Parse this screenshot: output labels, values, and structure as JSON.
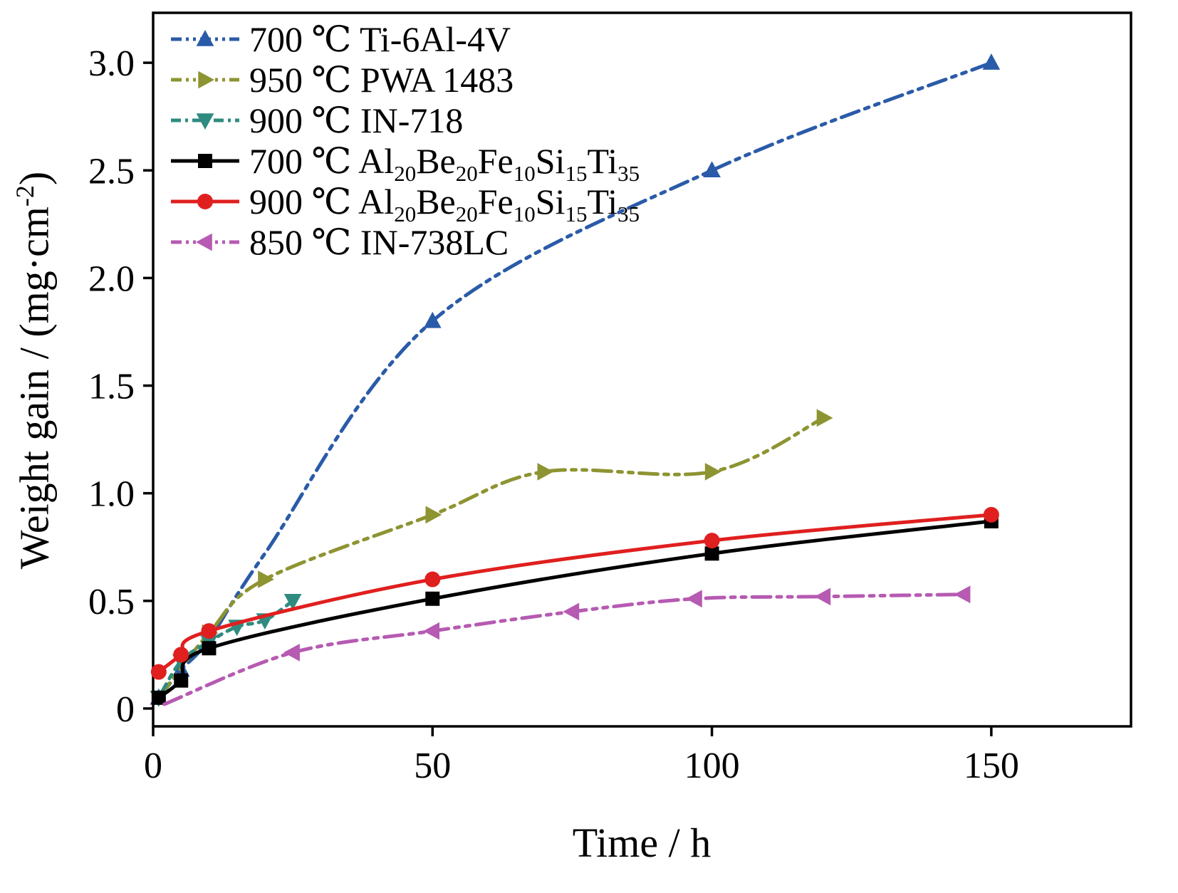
{
  "chart_data": {
    "type": "line",
    "title": "",
    "xlabel": "Time / h",
    "ylabel": "Weight gain / (mg·cm^{-2})",
    "xlim": [
      0,
      175
    ],
    "ylim": [
      -0.083,
      3.232
    ],
    "xticks": [
      0,
      50,
      100,
      150
    ],
    "xtick_labels": [
      "0",
      "50",
      "100",
      "150"
    ],
    "yticks": [
      0,
      0.5,
      1.0,
      1.5,
      2.0,
      2.5,
      3.0
    ],
    "ytick_labels": [
      "0",
      "0.5",
      "1.0",
      "1.5",
      "2.0",
      "2.5",
      "3.0"
    ],
    "grid": false,
    "legend_position": "top-left-inside",
    "series": [
      {
        "name": "700 ℃ Ti-6Al-4V",
        "color": "#2a5ba8",
        "marker": "triangle-up",
        "dash": "dashdotdot",
        "x": [
          1,
          5,
          10,
          20,
          50,
          100,
          150
        ],
        "y": [
          0.05,
          0.18,
          0.32,
          0.72,
          1.8,
          2.5,
          3.0
        ],
        "m": [
          1,
          1,
          1,
          0,
          1,
          1,
          1
        ]
      },
      {
        "name": "950 ℃ PWA 1483",
        "color": "#8d9432",
        "marker": "triangle-right",
        "dash": "dashdotdot",
        "x": [
          1,
          10,
          20,
          50,
          70,
          100,
          120
        ],
        "y": [
          0.05,
          0.35,
          0.6,
          0.9,
          1.1,
          1.1,
          1.35
        ],
        "m": [
          0,
          1,
          1,
          1,
          1,
          1,
          1
        ]
      },
      {
        "name": "900 ℃ IN-718",
        "color": "#2f8b80",
        "marker": "triangle-down",
        "dash": "dashdot",
        "x": [
          1,
          5,
          10,
          15,
          20,
          25
        ],
        "y": [
          0.05,
          0.22,
          0.31,
          0.38,
          0.41,
          0.5
        ],
        "m": [
          1,
          1,
          1,
          1,
          1,
          1
        ]
      },
      {
        "name": "700 ℃ Al_{20}Be_{20}Fe_{10}Si_{15}Ti_{35}",
        "color": "#000000",
        "marker": "square",
        "dash": "solid",
        "x": [
          1,
          5,
          10,
          50,
          100,
          150
        ],
        "y": [
          0.05,
          0.13,
          0.28,
          0.51,
          0.72,
          0.87
        ],
        "m": [
          1,
          1,
          1,
          1,
          1,
          1
        ]
      },
      {
        "name": "900 ℃ Al_{20}Be_{20}Fe_{10}Si_{15}Ti_{35}",
        "color": "#e01f1f",
        "marker": "circle",
        "dash": "solid",
        "x": [
          1,
          5,
          10,
          50,
          100,
          150
        ],
        "y": [
          0.17,
          0.25,
          0.36,
          0.6,
          0.78,
          0.9
        ],
        "m": [
          1,
          1,
          1,
          1,
          1,
          1
        ]
      },
      {
        "name": "850 ℃ IN-738LC",
        "color": "#b65ab2",
        "marker": "triangle-left",
        "dash": "dashdotdot",
        "x": [
          2,
          25,
          50,
          75,
          97,
          120,
          145
        ],
        "y": [
          0.02,
          0.26,
          0.36,
          0.45,
          0.51,
          0.52,
          0.53
        ],
        "m": [
          0,
          1,
          1,
          1,
          1,
          1,
          1
        ]
      }
    ]
  }
}
